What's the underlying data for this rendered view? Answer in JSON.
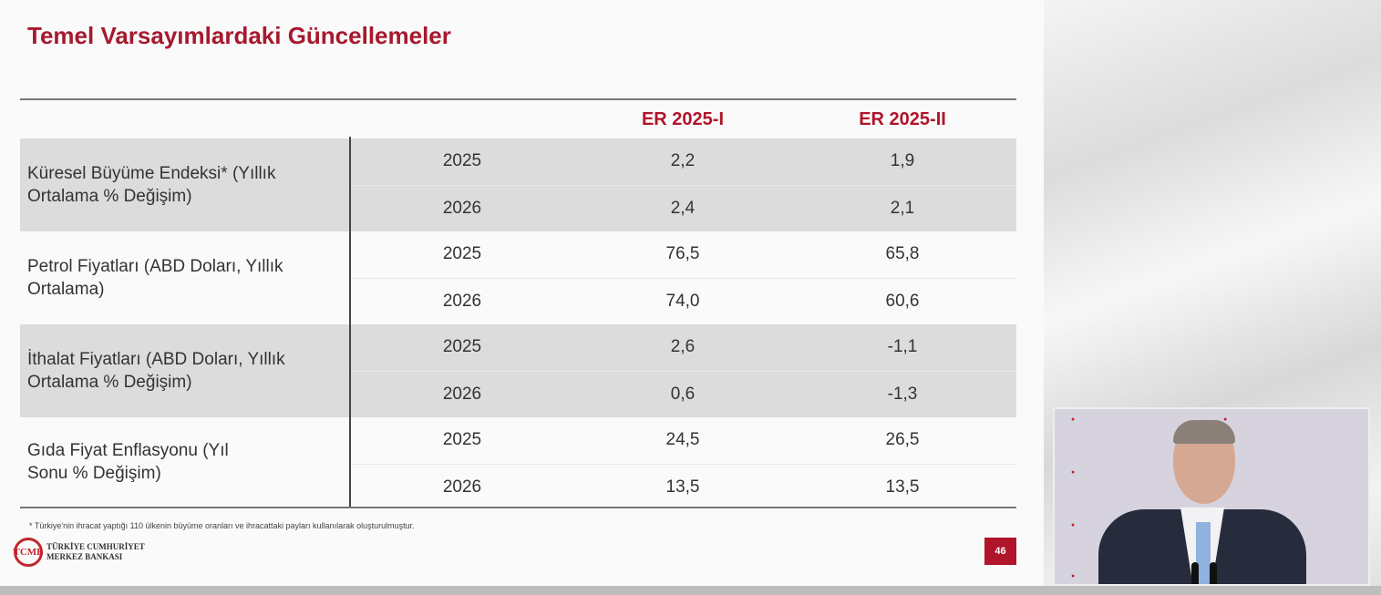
{
  "title": "Temel Varsayımlardaki Güncellemeler",
  "table": {
    "headers": [
      "",
      "",
      "ER 2025-I",
      "ER 2025-II"
    ],
    "groups": [
      {
        "label": "Küresel Büyüme Endeksi* (Yıllık Ortalama % Değişim)",
        "rows": [
          [
            "2025",
            "2,2",
            "1,9"
          ],
          [
            "2026",
            "2,4",
            "2,1"
          ]
        ]
      },
      {
        "label": "Petrol Fiyatları (ABD Doları, Yıllık Ortalama)",
        "rows": [
          [
            "2025",
            "76,5",
            "65,8"
          ],
          [
            "2026",
            "74,0",
            "60,6"
          ]
        ]
      },
      {
        "label": "İthalat Fiyatları (ABD Doları, Yıllık Ortalama % Değişim)",
        "rows": [
          [
            "2025",
            "2,6",
            "-1,1"
          ],
          [
            "2026",
            "0,6",
            "-1,3"
          ]
        ]
      },
      {
        "label": "Gıda Fiyat Enflasyonu (Yıl Sonu % Değişim)",
        "rows": [
          [
            "2025",
            "24,5",
            "26,5"
          ],
          [
            "2026",
            "13,5",
            "13,5"
          ]
        ]
      }
    ]
  },
  "footnote": "* Türkiye'nin ihracat yaptığı 110 ülkenin büyüme oranları ve ihracattaki payları kullanılarak oluşturulmuştur.",
  "logo": {
    "mark": "TCMB",
    "line1": "TÜRKİYE CUMHURİYET",
    "line2": "MERKEZ BANKASI"
  },
  "page_number": "46",
  "colors": {
    "accent": "#b0152a",
    "row_shade": "#dcdcdc"
  }
}
